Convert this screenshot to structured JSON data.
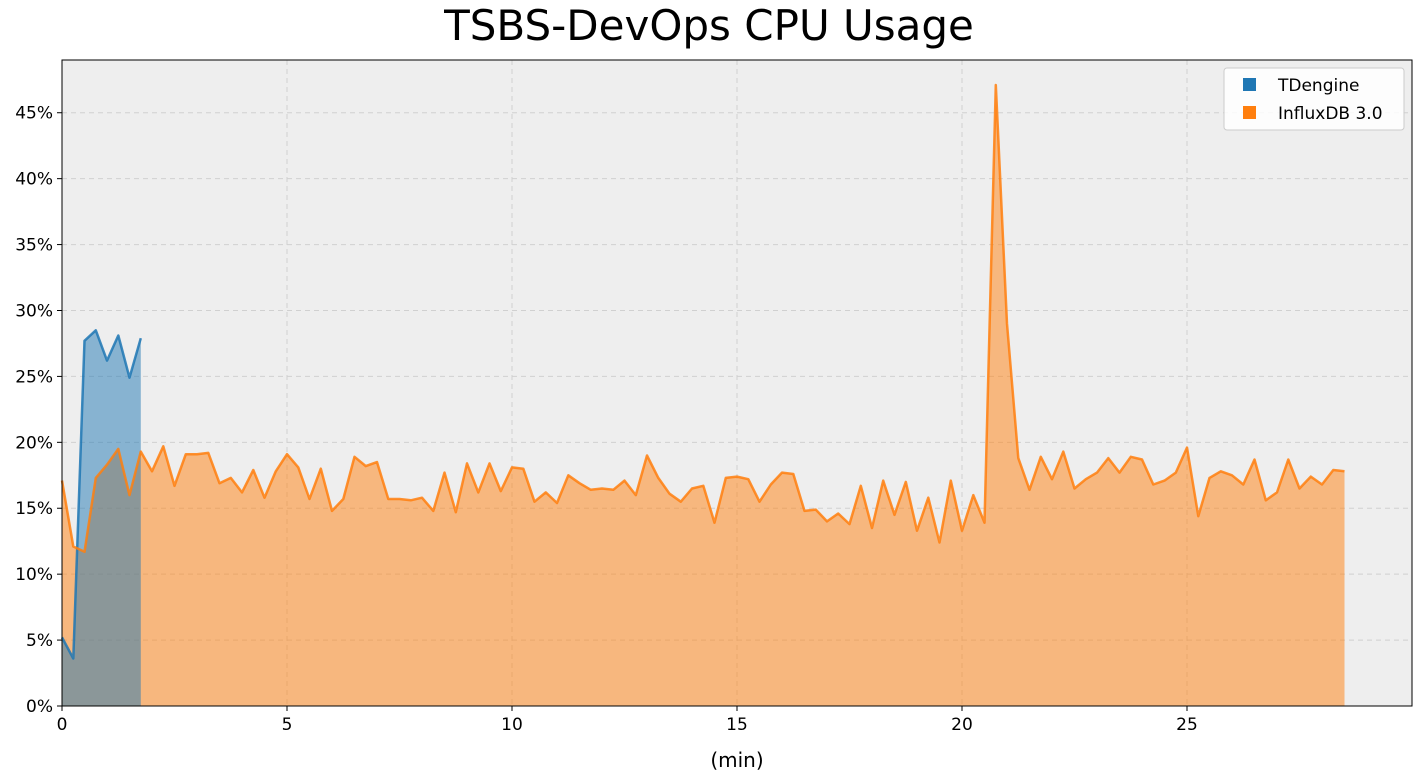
{
  "chart_data": {
    "type": "area",
    "title": "TSBS-DevOps CPU Usage",
    "xlabel": "(min)",
    "ylabel": "",
    "xlim": [
      0,
      30
    ],
    "ylim": [
      0,
      0.49
    ],
    "xticks": [
      0,
      5,
      10,
      15,
      20,
      25
    ],
    "xtick_labels": [
      "0",
      "5",
      "10",
      "15",
      "20",
      "25"
    ],
    "yticks": [
      0,
      0.05,
      0.1,
      0.15,
      0.2,
      0.25,
      0.3,
      0.35,
      0.4,
      0.45
    ],
    "ytick_labels": [
      "0%",
      "5%",
      "10%",
      "15%",
      "20%",
      "25%",
      "30%",
      "35%",
      "40%",
      "45%"
    ],
    "grid": true,
    "legend_position": "top-right",
    "colors": {
      "plot_background": "#eeeeee",
      "grid": "#d0d0d0"
    },
    "series": [
      {
        "name": "TDengine",
        "color": "#1f77b4",
        "x": [
          0,
          0.25,
          0.5,
          0.75,
          1.0,
          1.25,
          1.5,
          1.75
        ],
        "y": [
          0.052,
          0.036,
          0.277,
          0.285,
          0.262,
          0.281,
          0.249,
          0.279
        ]
      },
      {
        "name": "InfluxDB 3.0",
        "color": "#ff7f0e",
        "x": [
          0,
          0.25,
          0.5,
          0.75,
          1.0,
          1.25,
          1.5,
          1.75,
          2.0,
          2.25,
          2.5,
          2.75,
          3.0,
          3.25,
          3.5,
          3.75,
          4.0,
          4.25,
          4.5,
          4.75,
          5.0,
          5.25,
          5.5,
          5.75,
          6.0,
          6.25,
          6.5,
          6.75,
          7.0,
          7.25,
          7.5,
          7.75,
          8.0,
          8.25,
          8.5,
          8.75,
          9.0,
          9.25,
          9.5,
          9.75,
          10.0,
          10.25,
          10.5,
          10.75,
          11.0,
          11.25,
          11.5,
          11.75,
          12.0,
          12.25,
          12.5,
          12.75,
          13.0,
          13.25,
          13.5,
          13.75,
          14.0,
          14.25,
          14.5,
          14.75,
          15.0,
          15.25,
          15.5,
          15.75,
          16.0,
          16.25,
          16.5,
          16.75,
          17.0,
          17.25,
          17.5,
          17.75,
          18.0,
          18.25,
          18.5,
          18.75,
          19.0,
          19.25,
          19.5,
          19.75,
          20.0,
          20.25,
          20.5,
          20.75,
          21.0,
          21.25,
          21.5,
          21.75,
          22.0,
          22.25,
          22.5,
          22.75,
          23.0,
          23.25,
          23.5,
          23.75,
          24.0,
          24.25,
          24.5,
          24.75,
          25.0,
          25.25,
          25.5,
          25.75,
          26.0,
          26.25,
          26.5,
          26.75,
          27.0,
          27.25,
          27.5,
          27.75,
          28.0,
          28.25,
          28.5
        ],
        "y": [
          0.171,
          0.121,
          0.117,
          0.173,
          0.183,
          0.195,
          0.16,
          0.193,
          0.178,
          0.197,
          0.167,
          0.191,
          0.191,
          0.192,
          0.169,
          0.173,
          0.162,
          0.179,
          0.158,
          0.178,
          0.191,
          0.181,
          0.157,
          0.18,
          0.148,
          0.157,
          0.189,
          0.182,
          0.185,
          0.157,
          0.157,
          0.156,
          0.158,
          0.148,
          0.177,
          0.147,
          0.184,
          0.162,
          0.184,
          0.163,
          0.181,
          0.18,
          0.155,
          0.162,
          0.154,
          0.175,
          0.169,
          0.164,
          0.165,
          0.164,
          0.171,
          0.16,
          0.19,
          0.173,
          0.161,
          0.155,
          0.165,
          0.167,
          0.139,
          0.173,
          0.174,
          0.172,
          0.155,
          0.168,
          0.177,
          0.176,
          0.148,
          0.149,
          0.14,
          0.146,
          0.138,
          0.167,
          0.135,
          0.171,
          0.145,
          0.17,
          0.133,
          0.158,
          0.124,
          0.171,
          0.133,
          0.16,
          0.139,
          0.471,
          0.29,
          0.188,
          0.164,
          0.189,
          0.172,
          0.193,
          0.165,
          0.172,
          0.177,
          0.188,
          0.177,
          0.189,
          0.187,
          0.168,
          0.171,
          0.177,
          0.196,
          0.144,
          0.173,
          0.178,
          0.175,
          0.168,
          0.187,
          0.156,
          0.162,
          0.187,
          0.165,
          0.174,
          0.168,
          0.179,
          0.178
        ]
      }
    ]
  }
}
